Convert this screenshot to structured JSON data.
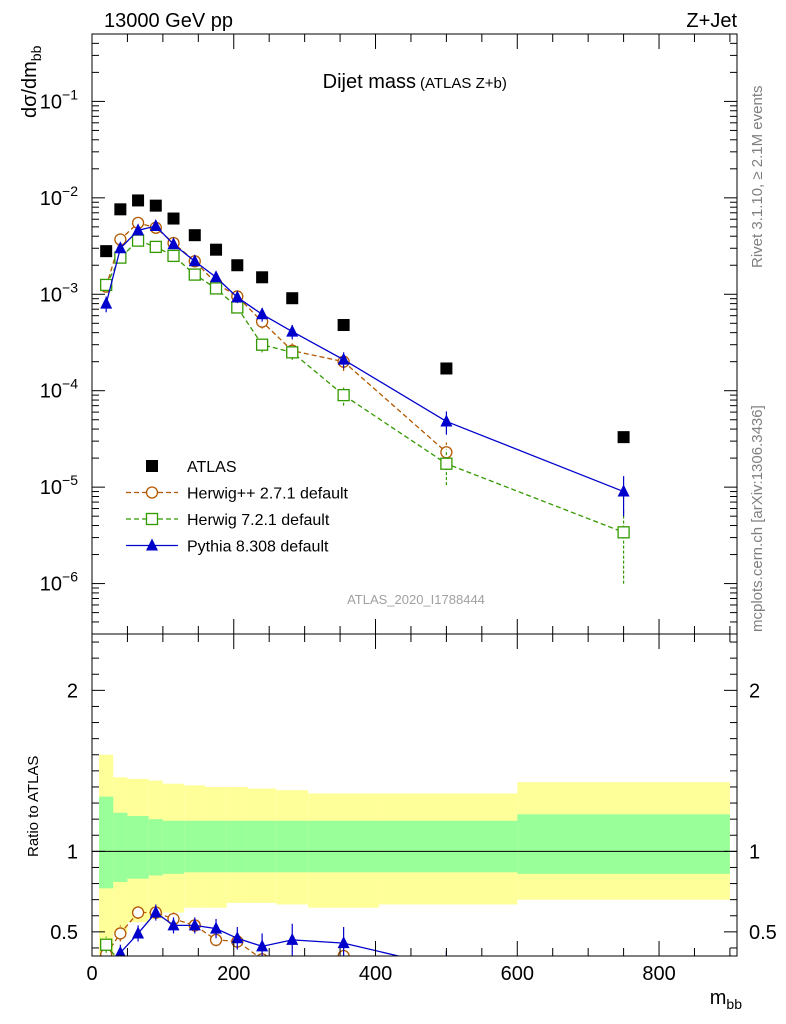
{
  "header": {
    "left": "13000 GeV pp",
    "right": "Z+Jet"
  },
  "side_text": {
    "rivet": "Rivet 3.1.10, ≥ 2.1M events",
    "url": "mcplots.cern.ch [arXiv:1306.3436]"
  },
  "chart_data": [
    {
      "type": "scatter",
      "title": "Dijet mass",
      "subtitle": "(ATLAS Z+b)",
      "ylabel": "dσ/dm",
      "ylabel_sub": "bb",
      "xlabel": "m",
      "xlabel_sub": "bb",
      "xlim": [
        0,
        910
      ],
      "ylim": [
        3e-07,
        0.5
      ],
      "yscale": "log",
      "y_ticks": [
        {
          "value": 1e-06,
          "base": "10",
          "exp": "−6"
        },
        {
          "value": 1e-05,
          "base": "10",
          "exp": "−5"
        },
        {
          "value": 0.0001,
          "base": "10",
          "exp": "−4"
        },
        {
          "value": 0.001,
          "base": "10",
          "exp": "−3"
        },
        {
          "value": 0.01,
          "base": "10",
          "exp": "−2"
        },
        {
          "value": 0.1,
          "base": "10",
          "exp": "−1"
        }
      ],
      "analysis_label": "ATLAS_2020_I1788444",
      "legend_position": "lower-left",
      "series": [
        {
          "name": "ATLAS",
          "style": "data",
          "color": "#000000",
          "x": [
            20,
            40,
            65,
            90,
            115,
            145,
            175,
            205,
            240,
            282.5,
            355,
            500,
            750
          ],
          "values": [
            0.0028,
            0.0076,
            0.0094,
            0.0083,
            0.0061,
            0.0041,
            0.0029,
            0.002,
            0.0015,
            0.00091,
            0.00048,
            0.00017,
            3.3e-05
          ]
        },
        {
          "name": "Herwig++ 2.7.1 default",
          "style": "circle-dashed",
          "color": "#b35900",
          "x": [
            20,
            40,
            65,
            90,
            115,
            145,
            175,
            205,
            240,
            282.5,
            355,
            500
          ],
          "values": [
            0.0012,
            0.0037,
            0.0055,
            0.0049,
            0.0034,
            0.0022,
            0.0013,
            0.00095,
            0.00052,
            0.00026,
            0.0002,
            2.3e-05
          ],
          "err": [
            0.00015,
            0.0003,
            0.0004,
            0.0004,
            0.0003,
            0.0002,
            0.00015,
            0.0001,
            8e-05,
            5e-05,
            4e-05,
            6e-06
          ]
        },
        {
          "name": "Herwig 7.2.1 default",
          "style": "square-dashed",
          "color": "#339900",
          "x": [
            20,
            40,
            65,
            90,
            115,
            145,
            175,
            205,
            240,
            282.5,
            355,
            500,
            750
          ],
          "values": [
            0.00125,
            0.0024,
            0.0036,
            0.0031,
            0.0025,
            0.0016,
            0.00115,
            0.00073,
            0.0003,
            0.00025,
            9e-05,
            1.75e-05,
            3.4e-06
          ],
          "err": [
            0.00015,
            0.0002,
            0.0003,
            0.0003,
            0.0002,
            0.00015,
            0.00012,
            8e-05,
            5e-05,
            4e-05,
            2e-05,
            7e-06,
            2.4e-06
          ]
        },
        {
          "name": "Pythia 8.308 default",
          "style": "triangle-solid",
          "color": "#0000cc",
          "x": [
            20,
            40,
            65,
            90,
            115,
            145,
            175,
            205,
            240,
            282.5,
            355,
            500,
            750
          ],
          "values": [
            0.0008,
            0.003,
            0.0046,
            0.0051,
            0.0033,
            0.0022,
            0.0015,
            0.00093,
            0.00062,
            0.00041,
            0.00021,
            4.8e-05,
            9e-06
          ],
          "err": [
            0.00015,
            0.0003,
            0.0004,
            0.0004,
            0.0003,
            0.0002,
            0.00015,
            0.00012,
            0.0001,
            7e-05,
            4e-05,
            1.3e-05,
            4e-06
          ]
        }
      ]
    },
    {
      "type": "scatter",
      "ylabel": "Ratio to ATLAS",
      "xlim": [
        0,
        910
      ],
      "ylim": [
        0.35,
        2.35
      ],
      "x_ticks": [
        0,
        200,
        400,
        600,
        800
      ],
      "y_ticks": [
        0.5,
        1,
        2
      ],
      "reference_line": 1,
      "bands": {
        "bins": [
          [
            10,
            30
          ],
          [
            30,
            50
          ],
          [
            50,
            80
          ],
          [
            80,
            100
          ],
          [
            100,
            130
          ],
          [
            130,
            160
          ],
          [
            160,
            190
          ],
          [
            190,
            220
          ],
          [
            220,
            260
          ],
          [
            260,
            305
          ],
          [
            305,
            405
          ],
          [
            405,
            600
          ],
          [
            600,
            900
          ]
        ],
        "total_lo": [
          0.35,
          0.49,
          0.56,
          0.58,
          0.62,
          0.65,
          0.65,
          0.68,
          0.68,
          0.67,
          0.65,
          0.67,
          0.7
        ],
        "total_hi": [
          1.6,
          1.46,
          1.45,
          1.44,
          1.42,
          1.41,
          1.4,
          1.4,
          1.39,
          1.38,
          1.36,
          1.36,
          1.43
        ],
        "stat_lo": [
          0.77,
          0.81,
          0.83,
          0.85,
          0.86,
          0.87,
          0.87,
          0.87,
          0.87,
          0.87,
          0.87,
          0.87,
          0.86
        ],
        "stat_hi": [
          1.34,
          1.24,
          1.22,
          1.2,
          1.19,
          1.19,
          1.19,
          1.19,
          1.19,
          1.19,
          1.19,
          1.19,
          1.23
        ],
        "total_color": "#ffff99",
        "stat_color": "#99ff99"
      },
      "series": [
        {
          "name": "Herwig++ 2.7.1 default",
          "color": "#b35900",
          "x": [
            20,
            40,
            65,
            90,
            115,
            145,
            175,
            205,
            240,
            282.5,
            355
          ],
          "values": [
            0.36,
            0.49,
            0.62,
            0.62,
            0.58,
            0.54,
            0.45,
            0.44,
            0.33,
            0.3,
            0.35
          ],
          "err": [
            0.05,
            0.05,
            0.04,
            0.04,
            0.04,
            0.04,
            0.04,
            0.04,
            0.05,
            0.05,
            0.06
          ]
        },
        {
          "name": "Herwig 7.2.1 default",
          "color": "#339900",
          "x": [
            20,
            40
          ],
          "values": [
            0.42,
            0.31
          ],
          "err": [
            0.05,
            0.04
          ]
        },
        {
          "name": "Pythia 8.308 default",
          "color": "#0000cc",
          "x": [
            20,
            40,
            65,
            90,
            115,
            145,
            175,
            205,
            240,
            282.5,
            355,
            500
          ],
          "values": [
            0.29,
            0.37,
            0.49,
            0.62,
            0.54,
            0.54,
            0.52,
            0.46,
            0.41,
            0.45,
            0.43,
            0.28
          ],
          "err": [
            0.05,
            0.05,
            0.05,
            0.05,
            0.05,
            0.05,
            0.06,
            0.07,
            0.08,
            0.1,
            0.1,
            0.1
          ]
        }
      ]
    }
  ]
}
